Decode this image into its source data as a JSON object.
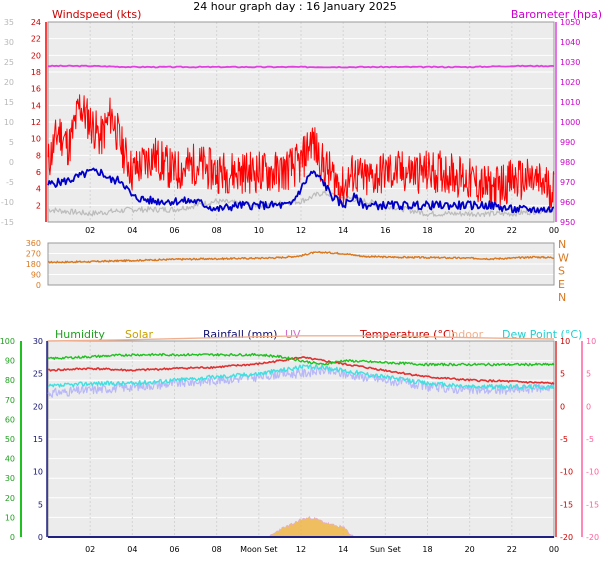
{
  "title": "24 hour graph day : 16 January 2025",
  "colors": {
    "wind_gust": "#ff0000",
    "wind_avg": "#0000c8",
    "barometer": "#e040e0",
    "baro_gray": "#bcbcbc",
    "direction": "#d87820",
    "humidity": "#20c020",
    "solar": "#f0b030",
    "rain": "#202080",
    "uv": "#e090e0",
    "temperature": "#e03030",
    "indoor": "#f0b090",
    "dewpoint": "#40e0e0",
    "lavender": "#b8b8f8",
    "chill_axis": "#ff60a0"
  },
  "chart_data": [
    {
      "type": "line",
      "name": "wind-barometer",
      "title": "",
      "left_label": "Windspeed (kts)",
      "right_label": "Barometer (hpa)",
      "x_ticks": [
        "02",
        "04",
        "06",
        "08",
        "10",
        "12",
        "14",
        "16",
        "18",
        "20",
        "22",
        "00"
      ],
      "x_range_hours": [
        0,
        24
      ],
      "y_left": {
        "range": [
          0,
          24
        ],
        "ticks": [
          "2",
          "4",
          "6",
          "8",
          "10",
          "12",
          "14",
          "16",
          "18",
          "20",
          "22",
          "24"
        ]
      },
      "y_left_outer": {
        "range": [
          -15,
          35
        ],
        "ticks": [
          "-15",
          "-10",
          "-5",
          "0",
          "5",
          "10",
          "15",
          "20",
          "25",
          "30",
          "35"
        ]
      },
      "y_right": {
        "range": [
          950,
          1050
        ],
        "ticks": [
          "950",
          "960",
          "970",
          "980",
          "990",
          "1000",
          "1010",
          "1020",
          "1030",
          "1040",
          "1050"
        ]
      },
      "series": [
        {
          "key": "gust",
          "values": [
            [
              0,
              7
            ],
            [
              0.5,
              11
            ],
            [
              1,
              9
            ],
            [
              1.5,
              14
            ],
            [
              2,
              12
            ],
            [
              2.5,
              10
            ],
            [
              3,
              13
            ],
            [
              3.5,
              9
            ],
            [
              4,
              6
            ],
            [
              5,
              8
            ],
            [
              6,
              6
            ],
            [
              7,
              7
            ],
            [
              8,
              6
            ],
            [
              9,
              6
            ],
            [
              10,
              6
            ],
            [
              11,
              6
            ],
            [
              12,
              7
            ],
            [
              12.5,
              10
            ],
            [
              13,
              7
            ],
            [
              14,
              4
            ],
            [
              14.5,
              6
            ],
            [
              15,
              5
            ],
            [
              16,
              6
            ],
            [
              17,
              6
            ],
            [
              18,
              6
            ],
            [
              19,
              6
            ],
            [
              20,
              5
            ],
            [
              21,
              4
            ],
            [
              22,
              5
            ],
            [
              23,
              5
            ],
            [
              24,
              4
            ]
          ]
        },
        {
          "key": "avg",
          "values": [
            [
              0,
              4.5
            ],
            [
              1,
              5
            ],
            [
              2,
              6
            ],
            [
              2.5,
              6
            ],
            [
              3,
              5
            ],
            [
              3.5,
              5
            ],
            [
              4,
              3
            ],
            [
              5,
              2.5
            ],
            [
              6,
              2.5
            ],
            [
              7,
              2.5
            ],
            [
              8,
              1.5
            ],
            [
              9,
              2
            ],
            [
              10,
              2
            ],
            [
              11,
              2
            ],
            [
              11.5,
              2
            ],
            [
              12,
              4
            ],
            [
              12.5,
              6
            ],
            [
              13,
              5
            ],
            [
              13.5,
              3
            ],
            [
              14,
              2
            ],
            [
              14.5,
              3
            ],
            [
              15,
              2
            ],
            [
              16,
              2
            ],
            [
              17,
              2
            ],
            [
              18,
              2
            ],
            [
              19,
              2
            ],
            [
              20,
              2
            ],
            [
              21,
              2
            ],
            [
              22,
              1.5
            ],
            [
              23,
              1.5
            ],
            [
              24,
              1.5
            ]
          ]
        },
        {
          "key": "baro",
          "values": [
            [
              0,
              1028
            ],
            [
              2,
              1028
            ],
            [
              4,
              1027.5
            ],
            [
              6,
              1027.5
            ],
            [
              8,
              1027.5
            ],
            [
              10,
              1027.5
            ],
            [
              12,
              1027.5
            ],
            [
              14,
              1027.5
            ],
            [
              16,
              1027.5
            ],
            [
              18,
              1027.5
            ],
            [
              20,
              1027.5
            ],
            [
              22,
              1028
            ],
            [
              24,
              1028
            ]
          ]
        },
        {
          "key": "gray",
          "values": [
            [
              0,
              1.5
            ],
            [
              2,
              1
            ],
            [
              4,
              1.5
            ],
            [
              6,
              1.5
            ],
            [
              8,
              2.5
            ],
            [
              10,
              2
            ],
            [
              12,
              2.5
            ],
            [
              13,
              3.5
            ],
            [
              14,
              3
            ],
            [
              16,
              2
            ],
            [
              18,
              1
            ],
            [
              20,
              1
            ],
            [
              22,
              1
            ],
            [
              24,
              1.5
            ]
          ]
        }
      ]
    },
    {
      "type": "line",
      "name": "wind-direction",
      "x_range_hours": [
        0,
        24
      ],
      "y_left": {
        "range": [
          0,
          360
        ],
        "ticks": [
          "0",
          "90",
          "180",
          "270",
          "360"
        ]
      },
      "y_right_ticks": [
        "N",
        "W",
        "S",
        "E",
        "N"
      ],
      "series": [
        {
          "key": "direction",
          "values": [
            [
              0,
              195
            ],
            [
              2,
              200
            ],
            [
              4,
              210
            ],
            [
              6,
              220
            ],
            [
              8,
              225
            ],
            [
              10,
              230
            ],
            [
              11,
              235
            ],
            [
              12,
              250
            ],
            [
              12.5,
              275
            ],
            [
              13,
              280
            ],
            [
              14,
              270
            ],
            [
              15,
              245
            ],
            [
              16,
              240
            ],
            [
              18,
              235
            ],
            [
              20,
              230
            ],
            [
              21,
              225
            ],
            [
              22,
              230
            ],
            [
              23,
              240
            ],
            [
              24,
              235
            ]
          ]
        }
      ]
    },
    {
      "type": "line",
      "name": "multi",
      "x_ticks": [
        "02",
        "04",
        "06",
        "08",
        "Moon Set",
        "12",
        "14",
        "Sun Set",
        "18",
        "20",
        "22",
        "00"
      ],
      "x_range_hours": [
        0,
        24
      ],
      "legend": [
        "Humidity",
        "Solar",
        "Rainfall (mm)",
        "UV",
        "Temperature (°C)",
        "Indoor",
        "Dew Point (°C)"
      ],
      "y_humidity": {
        "range": [
          0,
          100
        ],
        "ticks": [
          "0",
          "10",
          "20",
          "30",
          "40",
          "50",
          "60",
          "70",
          "80",
          "90",
          "100"
        ]
      },
      "y_rain": {
        "range": [
          0,
          30
        ],
        "ticks": [
          "0",
          "5",
          "10",
          "15",
          "20",
          "25",
          "30"
        ]
      },
      "y_temp": {
        "range": [
          -20,
          10
        ],
        "ticks": [
          "-20",
          "-15",
          "-10",
          "-5",
          "0",
          "5",
          "10"
        ]
      },
      "series": [
        {
          "key": "humidity",
          "values": [
            [
              0,
              91
            ],
            [
              2,
              92
            ],
            [
              4,
              93
            ],
            [
              6,
              93
            ],
            [
              8,
              93
            ],
            [
              10,
              93
            ],
            [
              11,
              92
            ],
            [
              12,
              90
            ],
            [
              13,
              88
            ],
            [
              14,
              90
            ],
            [
              16,
              89
            ],
            [
              18,
              88
            ],
            [
              20,
              88
            ],
            [
              22,
              88
            ],
            [
              24,
              88
            ]
          ]
        },
        {
          "key": "temperature",
          "values": [
            [
              0,
              5.5
            ],
            [
              2,
              5.8
            ],
            [
              4,
              5.5
            ],
            [
              6,
              5.8
            ],
            [
              8,
              6
            ],
            [
              10,
              6.5
            ],
            [
              11,
              7
            ],
            [
              12,
              7.5
            ],
            [
              13,
              7
            ],
            [
              14,
              6.5
            ],
            [
              16,
              5.5
            ],
            [
              18,
              4.5
            ],
            [
              20,
              4
            ],
            [
              22,
              3.8
            ],
            [
              24,
              3.5
            ]
          ]
        },
        {
          "key": "dewpoint",
          "values": [
            [
              0,
              3
            ],
            [
              2,
              3.5
            ],
            [
              4,
              3.5
            ],
            [
              6,
              4
            ],
            [
              8,
              4.5
            ],
            [
              10,
              5
            ],
            [
              11,
              5.5
            ],
            [
              12,
              6
            ],
            [
              13,
              6
            ],
            [
              14,
              5.5
            ],
            [
              16,
              4.5
            ],
            [
              18,
              3.5
            ],
            [
              20,
              3
            ],
            [
              22,
              3
            ],
            [
              24,
              3
            ]
          ]
        },
        {
          "key": "lavender",
          "values": [
            [
              0,
              2
            ],
            [
              2,
              2.5
            ],
            [
              4,
              3
            ],
            [
              6,
              3.5
            ],
            [
              8,
              4
            ],
            [
              10,
              4.5
            ],
            [
              11,
              5
            ],
            [
              12,
              5
            ],
            [
              13,
              5.5
            ],
            [
              14,
              5
            ],
            [
              16,
              4
            ],
            [
              18,
              3
            ],
            [
              20,
              2.5
            ],
            [
              22,
              2.5
            ],
            [
              24,
              3
            ]
          ]
        },
        {
          "key": "indoor",
          "values": [
            [
              0,
              10
            ],
            [
              4,
              10.2
            ],
            [
              8,
              10.5
            ],
            [
              12,
              10.8
            ],
            [
              16,
              10.8
            ],
            [
              20,
              10.5
            ],
            [
              24,
              10.3
            ]
          ]
        },
        {
          "key": "solar",
          "values": [
            [
              10.5,
              0
            ],
            [
              11,
              4
            ],
            [
              11.5,
              6
            ],
            [
              12,
              9
            ],
            [
              12.5,
              10
            ],
            [
              13,
              8
            ],
            [
              13.5,
              6
            ],
            [
              14,
              5
            ],
            [
              14.3,
              2
            ],
            [
              14.5,
              0
            ]
          ]
        },
        {
          "key": "rain",
          "values": [
            [
              0,
              0
            ],
            [
              24,
              0
            ]
          ]
        }
      ]
    }
  ]
}
